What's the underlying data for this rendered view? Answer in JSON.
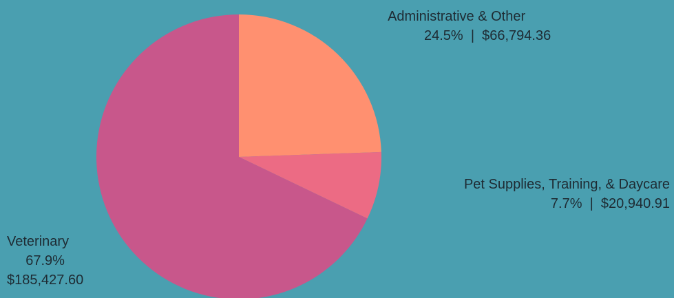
{
  "chart_data": {
    "type": "pie",
    "title": "",
    "slices": [
      {
        "name": "Administrative & Other",
        "percent": 24.5,
        "value": 66794.36,
        "percent_label": "24.5%",
        "value_label": "$66,794.36",
        "detail_label": "24.5%  |  $66,794.36",
        "color": "#ff9070"
      },
      {
        "name": "Pet Supplies, Training, & Daycare",
        "percent": 7.7,
        "value": 20940.91,
        "percent_label": "7.7%",
        "value_label": "$20,940.91",
        "detail_label": "7.7%  |  $20,940.91",
        "color": "#ec6b84"
      },
      {
        "name": "Veterinary",
        "percent": 67.9,
        "value": 185427.6,
        "percent_label": "67.9%",
        "value_label": "$185,427.60",
        "color": "#c8578b"
      }
    ],
    "start_angle": "12 o'clock",
    "direction": "clockwise",
    "legend": "none (labels placed beside slices)"
  },
  "colors": {
    "background": "#4a9fb0",
    "label_text": "#1e2b33"
  }
}
